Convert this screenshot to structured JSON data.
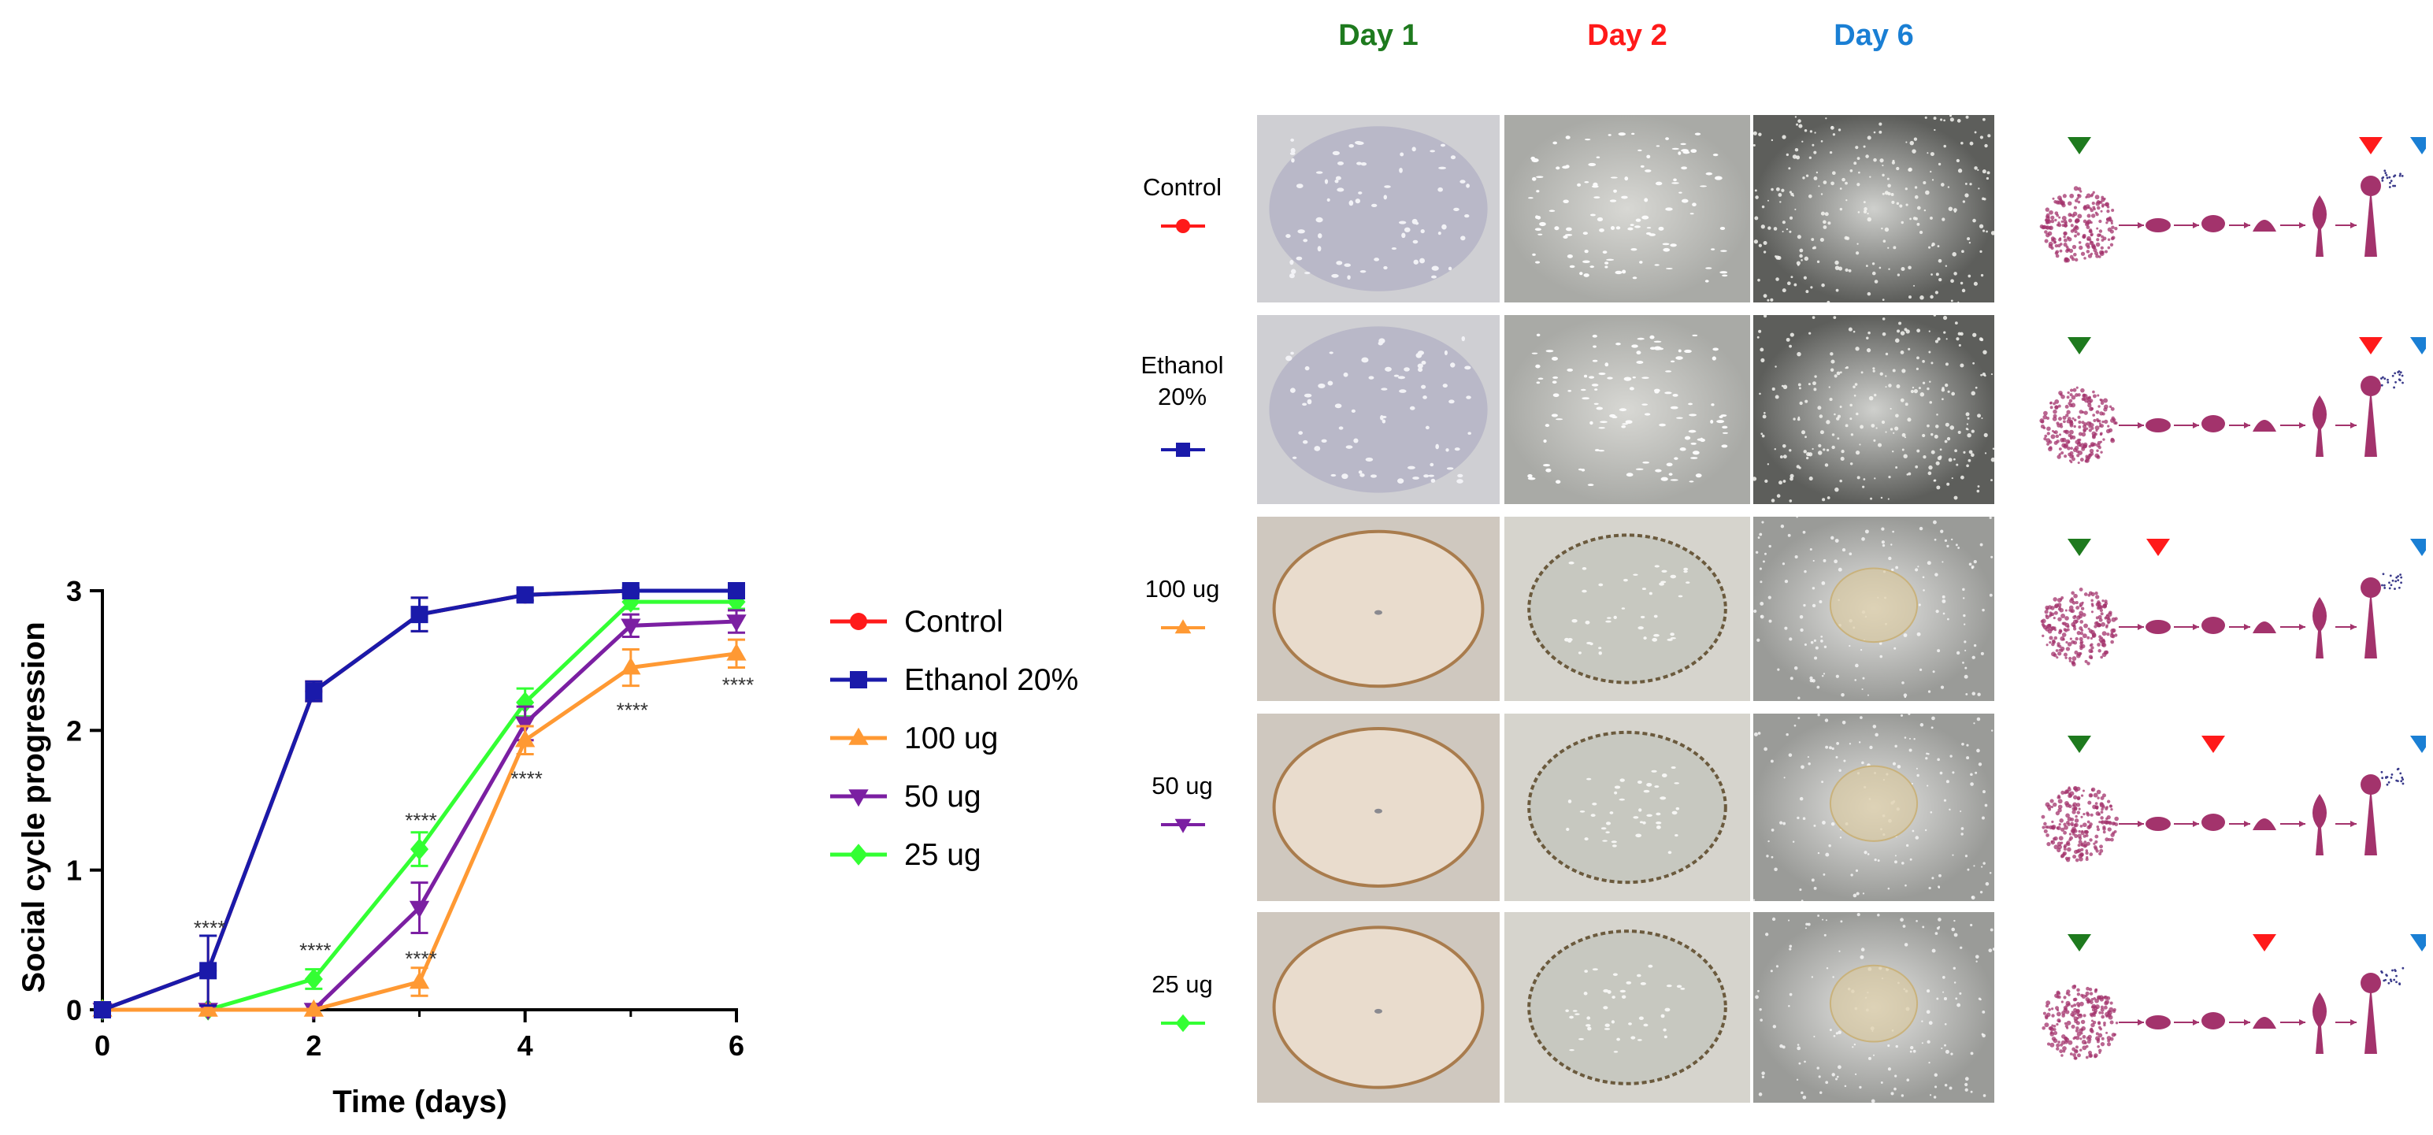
{
  "chart_data": {
    "type": "line",
    "xlabel": "Time (days)",
    "ylabel": "Social cycle progression",
    "xlim": [
      0,
      6
    ],
    "ylim": [
      0,
      3
    ],
    "xticks": [
      "0",
      "2",
      "4",
      "6"
    ],
    "yticks": [
      "0",
      "1",
      "2",
      "3"
    ],
    "grid": false,
    "legend_position": "right",
    "x": [
      0,
      1,
      2,
      3,
      4,
      5,
      6
    ],
    "series": [
      {
        "name": "Control",
        "color": "#ff1a1a",
        "marker": "circle",
        "values": [
          0,
          0.28,
          2.28,
          2.83,
          2.97,
          3.0,
          3.0
        ],
        "errors": [
          0,
          0.25,
          0.07,
          0.12,
          0.04,
          0.02,
          0.02
        ]
      },
      {
        "name": "Ethanol 20%",
        "color": "#1a1aaa",
        "marker": "square",
        "values": [
          0,
          0.28,
          2.28,
          2.83,
          2.97,
          3.0,
          3.0
        ],
        "errors": [
          0,
          0.25,
          0.07,
          0.12,
          0.04,
          0.02,
          0.02
        ]
      },
      {
        "name": "100 ug",
        "color": "#ff9933",
        "marker": "triangle-up",
        "values": [
          0,
          0,
          0,
          0.2,
          1.93,
          2.45,
          2.55
        ],
        "errors": [
          0,
          0,
          0,
          0.1,
          0.1,
          0.13,
          0.1
        ]
      },
      {
        "name": "50 ug",
        "color": "#7b1fa2",
        "marker": "triangle-down",
        "values": [
          0,
          0,
          0,
          0.73,
          2.05,
          2.75,
          2.78
        ],
        "errors": [
          0,
          0,
          0,
          0.18,
          0.12,
          0.08,
          0.08
        ]
      },
      {
        "name": "25 ug",
        "color": "#33ff33",
        "marker": "diamond",
        "values": [
          0,
          0,
          0.22,
          1.15,
          2.2,
          2.92,
          2.92
        ],
        "errors": [
          0,
          0,
          0.07,
          0.12,
          0.1,
          0.05,
          0.05
        ]
      }
    ],
    "annotations": [
      {
        "text": "****",
        "x": 1,
        "y": 0.58
      },
      {
        "text": "****",
        "x": 2,
        "y": 0.42
      },
      {
        "text": "****",
        "x": 3,
        "y": 1.35
      },
      {
        "text": "****",
        "x": 3,
        "y": 0.36
      },
      {
        "text": "****",
        "x": 4,
        "y": 1.65
      },
      {
        "text": "****",
        "x": 5,
        "y": 2.14
      },
      {
        "text": "****",
        "x": 6,
        "y": 2.32
      }
    ]
  },
  "figure": {
    "day_headers": [
      {
        "label": "Day 1",
        "color": "#1e7a1e"
      },
      {
        "label": "Day 2",
        "color": "#ff1a1a"
      },
      {
        "label": "Day 6",
        "color": "#1a7fd4"
      }
    ],
    "rows": [
      {
        "label": "Control",
        "color": "#ff1a1a",
        "marker": "circle",
        "day1": "dense-culture",
        "day2": "scattered-aggregates",
        "day6": "fruiting-bodies",
        "stages": [
          1,
          6,
          7
        ]
      },
      {
        "label": "Ethanol\n20%",
        "color": "#1a1aaa",
        "marker": "square",
        "day1": "dense-culture",
        "day2": "scattered-aggregates",
        "day6": "fruiting-bodies",
        "stages": [
          1,
          6,
          7
        ]
      },
      {
        "label": "100  ug",
        "color": "#ff9933",
        "marker": "triangle-up",
        "day1": "brown-ring",
        "day2": "dark-rim-film",
        "day6": "central-patch",
        "stages": [
          1,
          2,
          7
        ]
      },
      {
        "label": "50 ug",
        "color": "#7b1fa2",
        "marker": "triangle-down",
        "day1": "brown-ring",
        "day2": "dark-rim-film",
        "day6": "central-patch",
        "stages": [
          1,
          3,
          7
        ]
      },
      {
        "label": "25 ug",
        "color": "#33ff33",
        "marker": "diamond",
        "day1": "brown-ring",
        "day2": "dark-rim-film",
        "day6": "central-patch",
        "stages": [
          1,
          4,
          7
        ]
      }
    ],
    "stage_marker_colors": [
      "#1e7a1e",
      "#ff1a1a",
      "#1a7fd4"
    ]
  }
}
